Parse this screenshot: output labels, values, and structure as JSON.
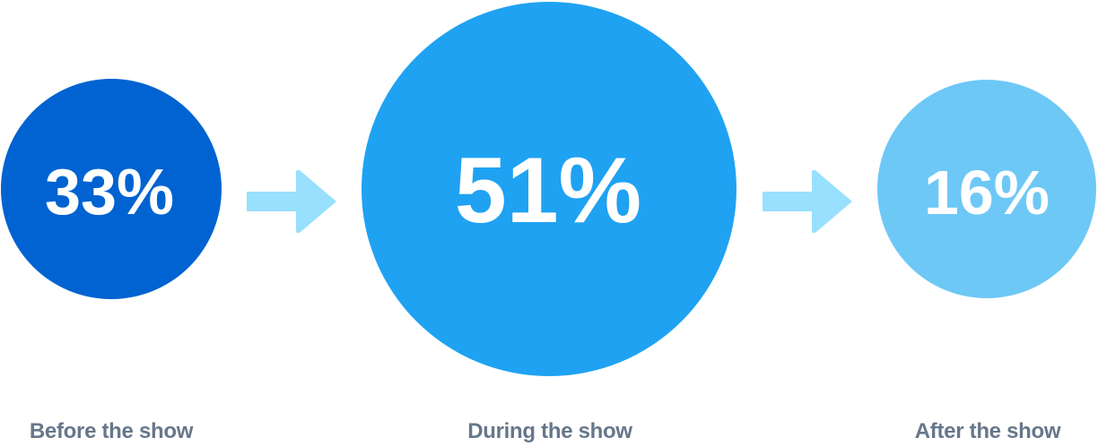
{
  "stages": [
    {
      "label": "Before the show",
      "value": "33%",
      "color": "#0063d1"
    },
    {
      "label": "During the show",
      "value": "51%",
      "color": "#1fa2f2"
    },
    {
      "label": "After the show",
      "value": "16%",
      "color": "#6dc8f6"
    }
  ],
  "arrow_color": "#98e0fd",
  "label_color": "#67778a"
}
